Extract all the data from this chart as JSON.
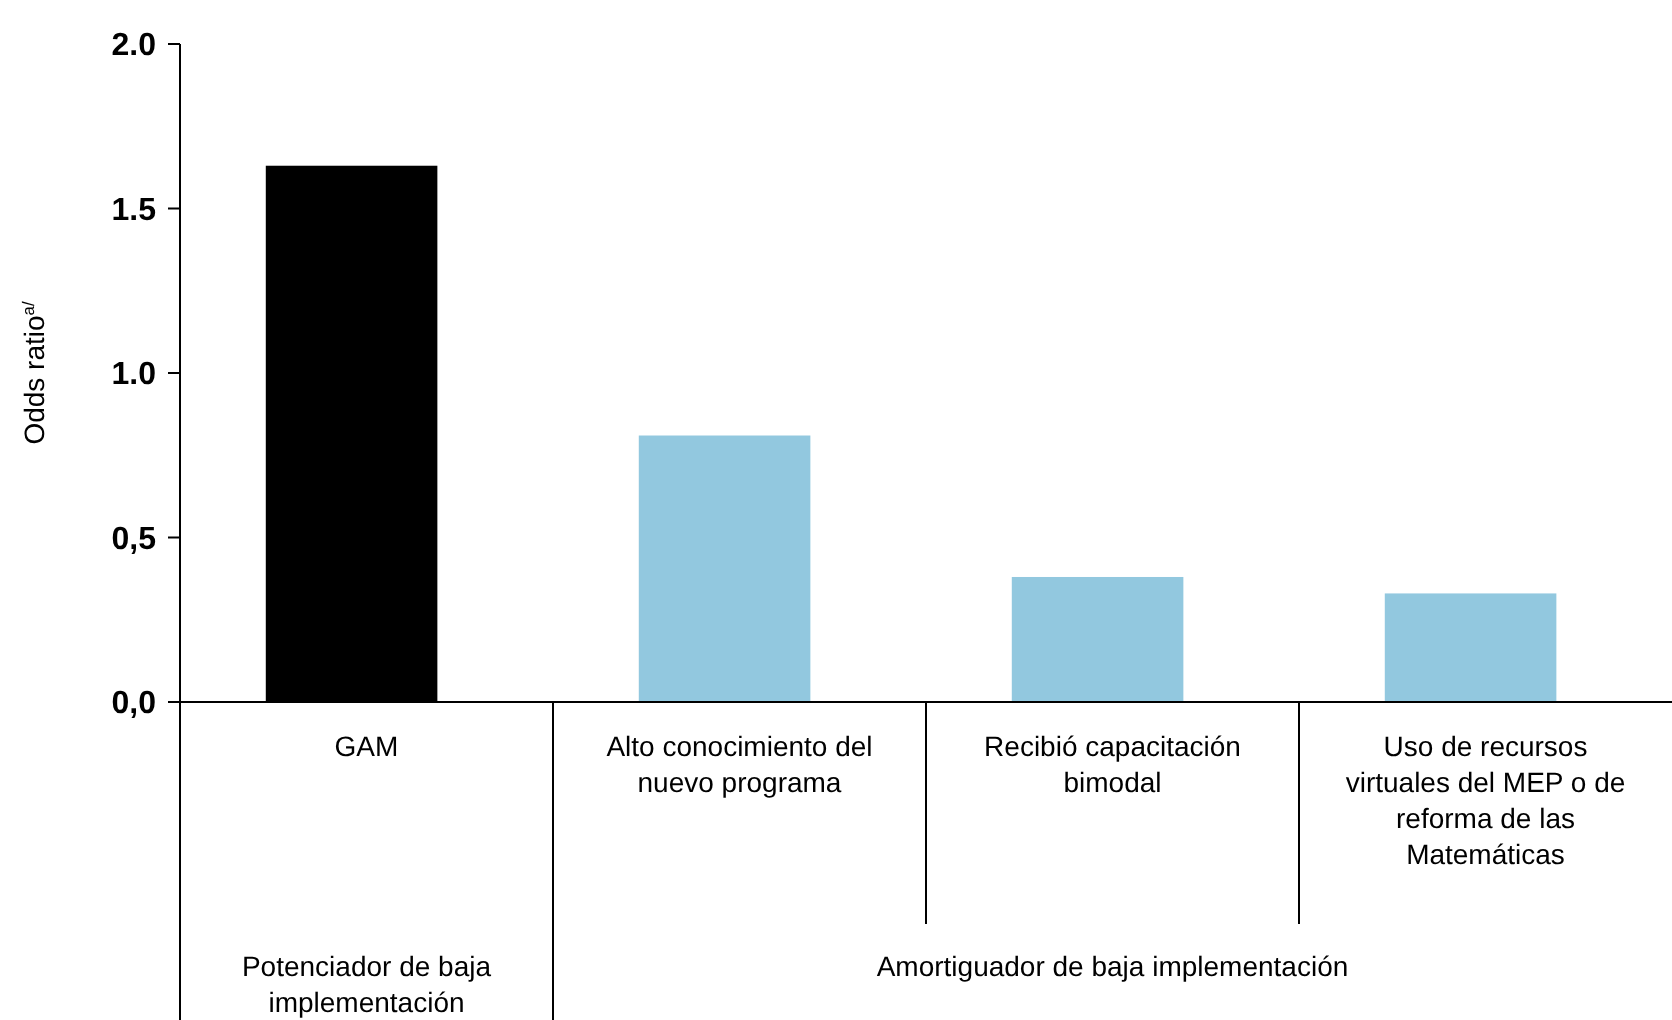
{
  "chart_data": {
    "type": "bar",
    "ylabel": "Odds ratio$^{a/}$",
    "categories": [
      "GAM",
      "Alto conocimiento del nuevo programa",
      "Recibió capacitación bimodal",
      "Uso de recursos virtuales del MEP o de reforma de las Matemáticas"
    ],
    "values": [
      1.63,
      0.81,
      0.38,
      0.33
    ],
    "colors": [
      "#000000",
      "#92c8df",
      "#92c8df",
      "#92c8df"
    ],
    "ylim": [
      0,
      2
    ],
    "yticks": [
      {
        "value": 0,
        "label": "0,0"
      },
      {
        "value": 0.5,
        "label": "0,5"
      },
      {
        "value": 1,
        "label": "1.0"
      },
      {
        "value": 1.5,
        "label": "1.5"
      },
      {
        "value": 2,
        "label": "2.0"
      }
    ],
    "grid": false,
    "annotations": [
      "Potenciador de baja implementación",
      "Amortiguador de baja implementación"
    ]
  }
}
